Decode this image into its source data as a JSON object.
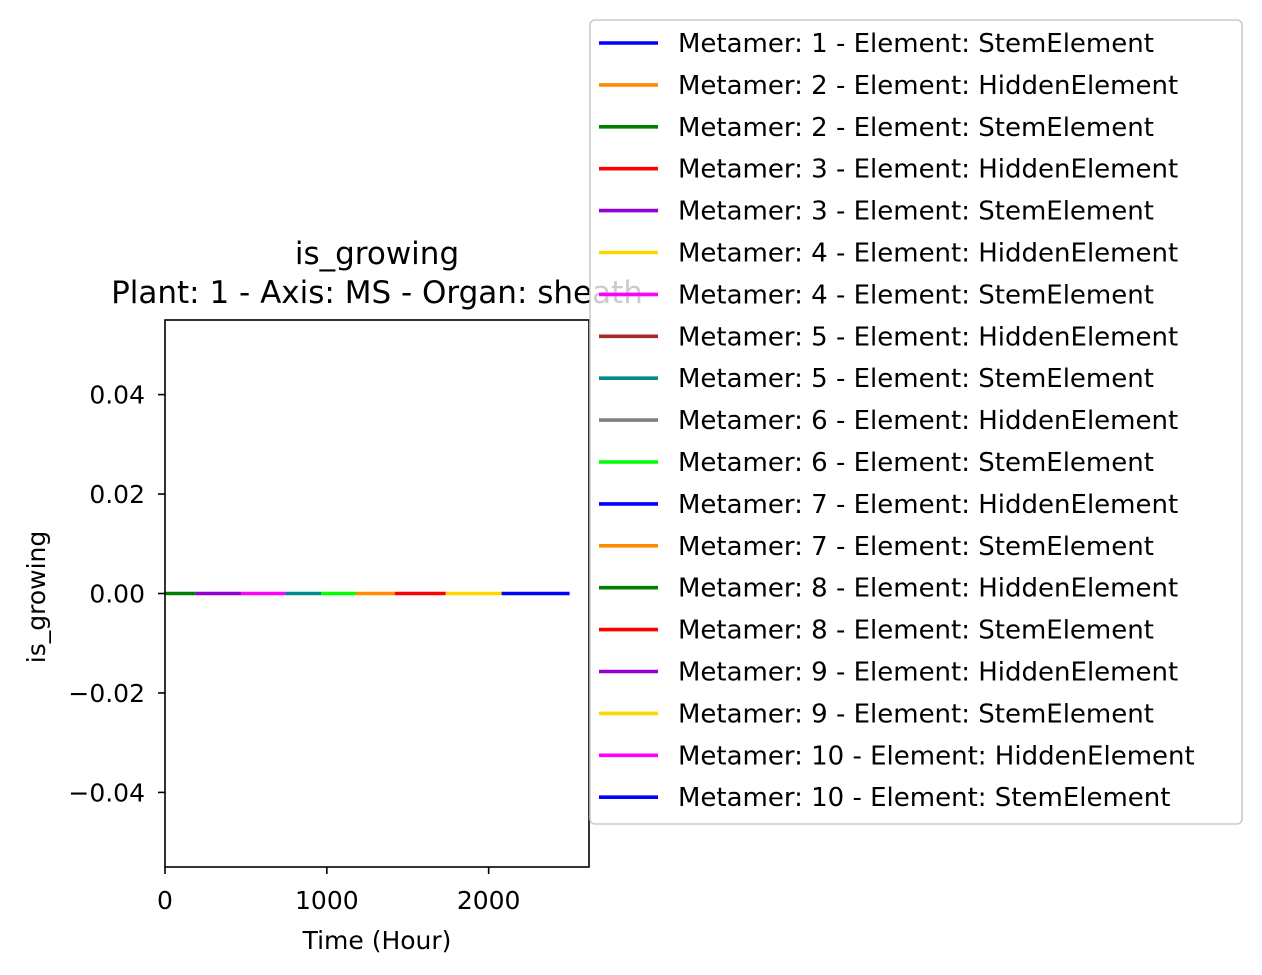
{
  "chart_data": {
    "type": "line",
    "title": "is_growing",
    "subtitle": "Plant: 1 - Axis: MS - Organ: sheath",
    "xlabel": "Time (Hour)",
    "ylabel": "is_growing",
    "xlim": [
      0,
      2620
    ],
    "ylim": [
      -0.055,
      0.055
    ],
    "xticks": [
      0,
      1000,
      2000
    ],
    "xtick_labels": [
      "0",
      "1000",
      "2000"
    ],
    "yticks": [
      0.04,
      0.02,
      0.0,
      -0.02,
      -0.04
    ],
    "ytick_labels": [
      "0.04",
      "0.02",
      "0.00",
      "−0.02",
      "−0.04"
    ],
    "grid": false,
    "legend_position": "right, outside plot",
    "series": [
      {
        "name": "Metamer: 1 - Element: StemElement",
        "color": "#0000ff",
        "x": [],
        "y": []
      },
      {
        "name": "Metamer: 2 - Element: HiddenElement",
        "color": "#ff8c00",
        "x": [],
        "y": []
      },
      {
        "name": "Metamer: 2 - Element: StemElement",
        "color": "#008000",
        "x": [
          0,
          190
        ],
        "y": [
          0,
          0
        ]
      },
      {
        "name": "Metamer: 3 - Element: HiddenElement",
        "color": "#ff0000",
        "x": [],
        "y": []
      },
      {
        "name": "Metamer: 3 - Element: StemElement",
        "color": "#9400d3",
        "x": [
          190,
          470
        ],
        "y": [
          0,
          0
        ]
      },
      {
        "name": "Metamer: 4 - Element: HiddenElement",
        "color": "#ffd700",
        "x": [],
        "y": []
      },
      {
        "name": "Metamer: 4 - Element: StemElement",
        "color": "#ff00ff",
        "x": [
          470,
          745
        ],
        "y": [
          0,
          0
        ]
      },
      {
        "name": "Metamer: 5 - Element: HiddenElement",
        "color": "#a52a2a",
        "x": [],
        "y": []
      },
      {
        "name": "Metamer: 5 - Element: StemElement",
        "color": "#008b8b",
        "x": [
          745,
          965
        ],
        "y": [
          0,
          0
        ]
      },
      {
        "name": "Metamer: 6 - Element: HiddenElement",
        "color": "#808080",
        "x": [],
        "y": []
      },
      {
        "name": "Metamer: 6 - Element: StemElement",
        "color": "#00ff00",
        "x": [
          965,
          1180
        ],
        "y": [
          0,
          0
        ]
      },
      {
        "name": "Metamer: 7 - Element: HiddenElement",
        "color": "#0000ff",
        "x": [],
        "y": []
      },
      {
        "name": "Metamer: 7 - Element: StemElement",
        "color": "#ff8c00",
        "x": [
          1180,
          1420
        ],
        "y": [
          0,
          0
        ]
      },
      {
        "name": "Metamer: 8 - Element: HiddenElement",
        "color": "#008000",
        "x": [],
        "y": []
      },
      {
        "name": "Metamer: 8 - Element: StemElement",
        "color": "#ff0000",
        "x": [
          1420,
          1735
        ],
        "y": [
          0,
          0
        ]
      },
      {
        "name": "Metamer: 9 - Element: HiddenElement",
        "color": "#9400d3",
        "x": [],
        "y": []
      },
      {
        "name": "Metamer: 9 - Element: StemElement",
        "color": "#ffd700",
        "x": [
          1735,
          2080
        ],
        "y": [
          0,
          0
        ]
      },
      {
        "name": "Metamer: 10 - Element: HiddenElement",
        "color": "#ff00ff",
        "x": [],
        "y": []
      },
      {
        "name": "Metamer: 10 - Element: StemElement",
        "color": "#0000ff",
        "x": [
          2080,
          2500
        ],
        "y": [
          0,
          0
        ]
      }
    ]
  }
}
